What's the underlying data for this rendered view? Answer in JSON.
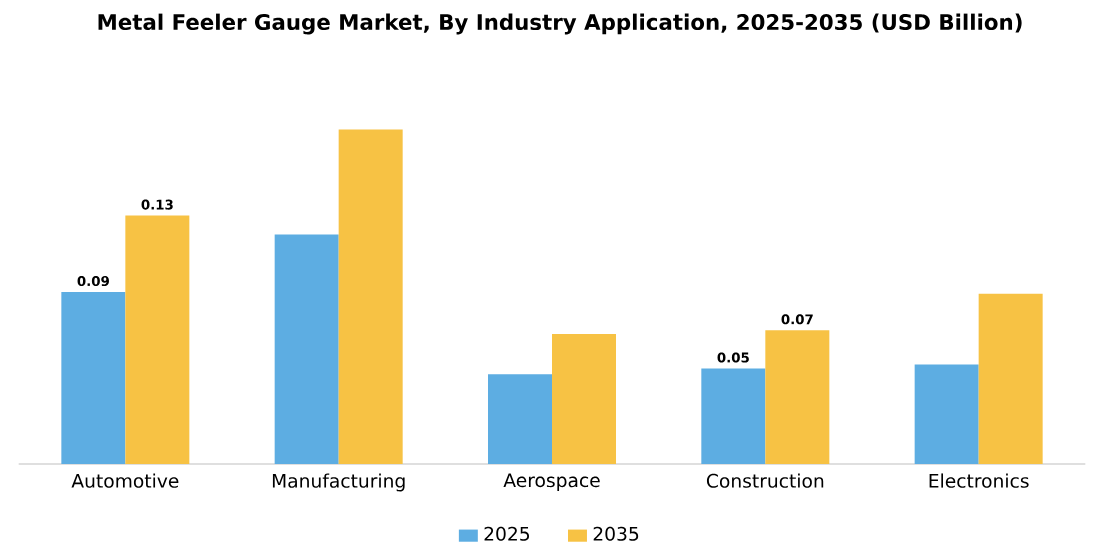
{
  "chart_data": {
    "type": "bar",
    "title": "Metal Feeler Gauge Market, By Industry Application, 2025-2035 (USD Billion)",
    "categories": [
      "Automotive",
      "Manufacturing",
      "Aerospace",
      "Construction",
      "Electronics"
    ],
    "series": [
      {
        "name": "2025",
        "color": "#5dade2",
        "values": [
          0.09,
          0.12,
          0.047,
          0.05,
          0.052
        ],
        "value_labels": [
          "0.09",
          null,
          null,
          "0.05",
          null
        ]
      },
      {
        "name": "2035",
        "color": "#f7c244",
        "values": [
          0.13,
          0.175,
          0.068,
          0.07,
          0.089
        ],
        "value_labels": [
          "0.13",
          null,
          null,
          "0.07",
          null
        ]
      }
    ],
    "legend": "bottom"
  }
}
